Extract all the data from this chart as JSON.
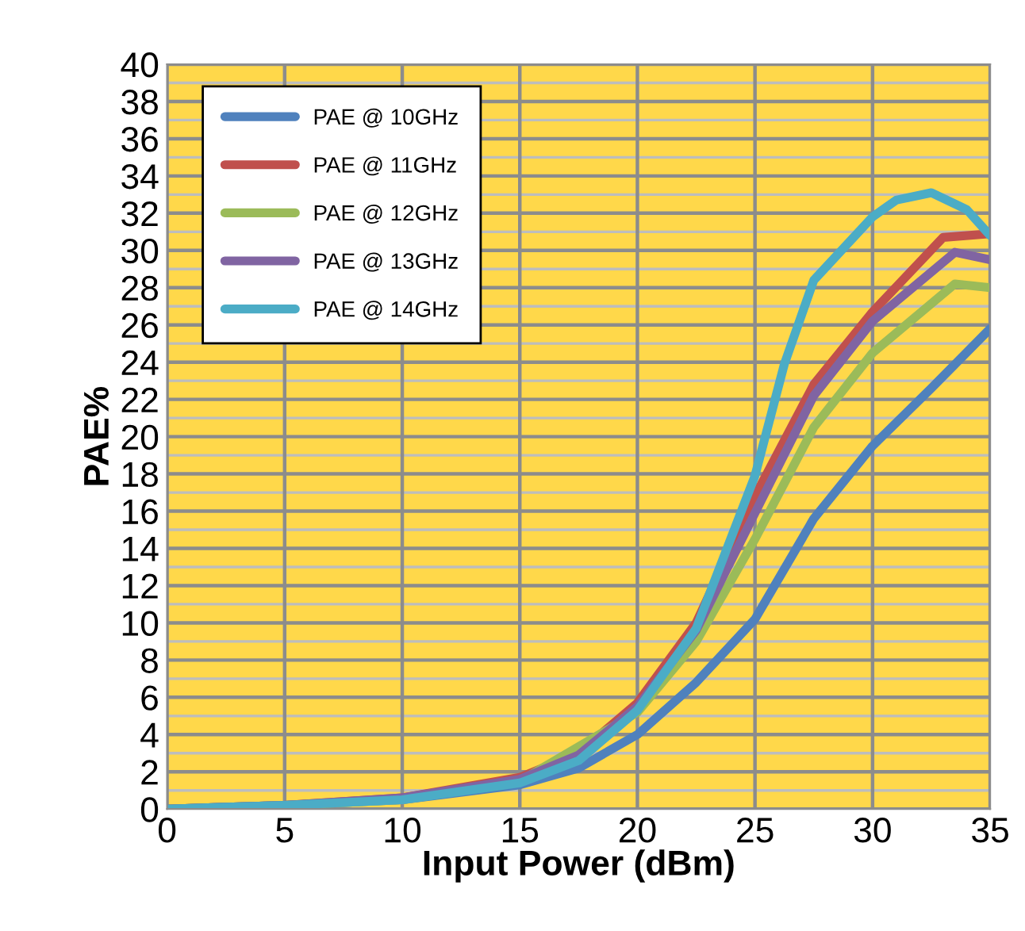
{
  "chart_data": {
    "type": "line",
    "xlabel": "Input Power (dBm)",
    "ylabel": "PAE%",
    "xlim": [
      0,
      35
    ],
    "xticks": [
      0,
      5,
      10,
      15,
      20,
      25,
      30,
      35
    ],
    "ylim": [
      0,
      40
    ],
    "yticks": [
      0,
      2,
      4,
      6,
      8,
      10,
      12,
      14,
      16,
      18,
      20,
      22,
      24,
      26,
      28,
      30,
      32,
      34,
      36,
      38,
      40
    ],
    "grid": true,
    "legend": "top left",
    "marker": "none",
    "line_style": "solid",
    "series": [
      {
        "name": "PAE @ 10GHz",
        "color": "#4f81bd",
        "x": [
          0,
          5,
          10,
          15,
          17.5,
          20,
          22.5,
          25,
          27.5,
          30,
          32.5,
          35
        ],
        "values": [
          0,
          0.2,
          0.5,
          1.3,
          2.2,
          4,
          6.8,
          10.2,
          15.6,
          19.5,
          22.6,
          25.8
        ]
      },
      {
        "name": "PAE @ 11GHz",
        "color": "#c0504d",
        "x": [
          0,
          5,
          10,
          15,
          17.5,
          20,
          22.5,
          25,
          27.5,
          30,
          33,
          35
        ],
        "values": [
          0,
          0.2,
          0.6,
          1.7,
          3,
          5.7,
          10,
          16.8,
          22.8,
          26.7,
          30.7,
          30.9
        ]
      },
      {
        "name": "PAE @ 12GHz",
        "color": "#9bbb59",
        "x": [
          0,
          5,
          10,
          15,
          17.5,
          20,
          22.5,
          25,
          27.5,
          30,
          33.5,
          35
        ],
        "values": [
          0,
          0.2,
          0.5,
          1.5,
          null,
          5.2,
          9,
          14.5,
          20.5,
          24.5,
          28.2,
          28
        ]
      },
      {
        "name": "PAE @ 13GHz",
        "color": "#8064a2",
        "x": [
          0,
          5,
          10,
          15,
          17.5,
          20,
          22.5,
          25,
          27.5,
          30,
          33.5,
          35
        ],
        "values": [
          0,
          0.2,
          0.6,
          1.6,
          2.9,
          5.5,
          9.6,
          15.9,
          22.2,
          26.2,
          29.9,
          29.5
        ]
      },
      {
        "name": "PAE @ 14GHz",
        "color": "#4bacc6",
        "x": [
          0,
          5,
          10,
          15,
          17.5,
          20,
          22.5,
          25,
          26.25,
          27.5,
          30,
          31,
          32.5,
          34,
          35
        ],
        "values": [
          0,
          0.2,
          0.5,
          1.4,
          2.6,
          5.3,
          9.7,
          17.9,
          23.9,
          28.4,
          31.8,
          32.7,
          33.1,
          32.2,
          30.8
        ]
      }
    ]
  }
}
